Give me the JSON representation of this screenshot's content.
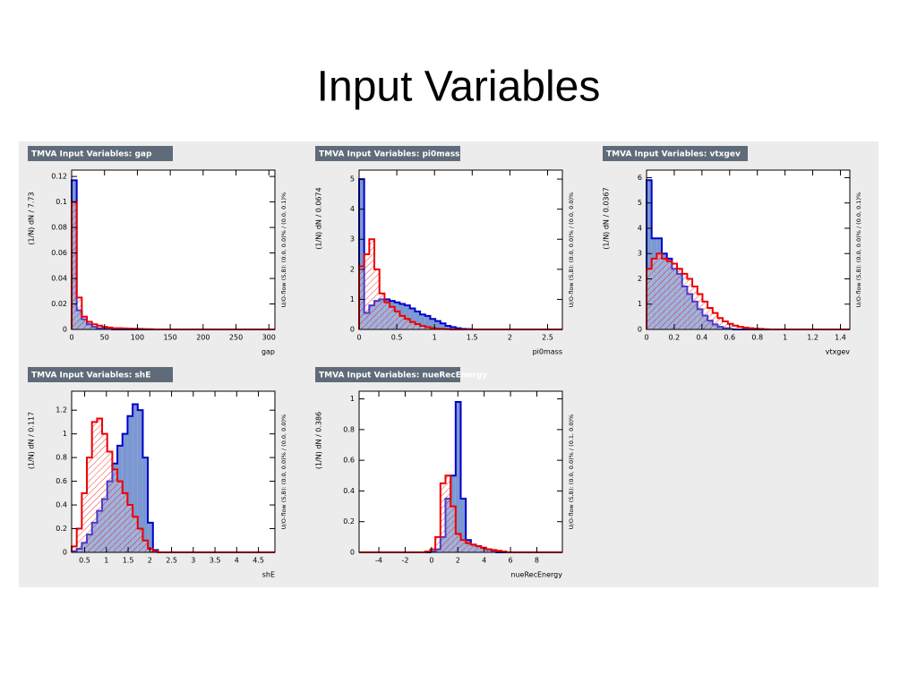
{
  "title": "Input Variables",
  "chart_data": [
    {
      "type": "histogram",
      "title": "TMVA Input Variables: gap",
      "x_label": "gap",
      "y_label": "(1/N) dN / 7.73",
      "side_label": "U/O-flow (S,B): (0.0, 0.0)% / (0.0, 0.1)%",
      "bins": [
        0,
        7.73,
        15.46,
        23.19,
        30.92,
        38.65,
        46.38,
        54.11,
        61.84,
        69.57,
        77.3,
        85.03,
        92.76,
        100.49,
        108.22,
        115.95,
        123.68,
        131.41,
        139.14,
        146.87,
        154.6,
        162.33,
        170.06,
        177.79,
        185.52,
        193.25,
        200.98,
        208.71,
        216.44,
        224.17,
        231.9,
        239.63,
        247.36,
        255.09,
        262.82,
        270.55,
        278.28,
        286.01,
        293.74,
        301.47,
        309.2
      ],
      "series": [
        {
          "color": "#0000cc",
          "fill": "#7b98d2",
          "values": [
            0.117,
            0.015,
            0.008,
            0.004,
            0.002,
            0.001,
            0.001,
            0.0005,
            0,
            0,
            0,
            0,
            0,
            0,
            0,
            0,
            0,
            0,
            0,
            0,
            0,
            0,
            0,
            0,
            0,
            0,
            0,
            0,
            0,
            0,
            0,
            0,
            0,
            0,
            0,
            0,
            0,
            0,
            0,
            0
          ]
        },
        {
          "color": "#ee0000",
          "fill": "hatch",
          "values": [
            0.1,
            0.025,
            0.01,
            0.006,
            0.004,
            0.003,
            0.002,
            0.0015,
            0.001,
            0.001,
            0.0008,
            0.0006,
            0.0005,
            0.0004,
            0.0003,
            0.0002,
            0,
            0,
            0,
            0,
            0,
            0,
            0,
            0,
            0,
            0,
            0,
            0,
            0,
            0,
            0,
            0,
            0,
            0,
            0,
            0,
            0,
            0,
            0,
            0
          ]
        }
      ],
      "xlim": [
        0,
        309.2
      ],
      "xticks": [
        0,
        50,
        100,
        150,
        200,
        250,
        300
      ],
      "ylim": [
        0,
        0.125
      ],
      "yticks": [
        0,
        0.02,
        0.04,
        0.06,
        0.08,
        0.1,
        0.12
      ]
    },
    {
      "type": "histogram",
      "title": "TMVA Input Variables: pi0mass",
      "x_label": "pi0mass",
      "y_label": "(1/N) dN / 0.0674",
      "side_label": "U/O-flow (S,B): (0.0, 0.0)% / (0.0, 0.0)%",
      "bins": [
        0,
        0.0674,
        0.1348,
        0.2022,
        0.2696,
        0.337,
        0.4044,
        0.4718,
        0.5392,
        0.6066,
        0.674,
        0.7414,
        0.8088,
        0.8762,
        0.9436,
        1.011,
        1.0784,
        1.1458,
        1.2132,
        1.2806,
        1.348,
        1.4154,
        1.4828,
        1.5502,
        1.6176,
        1.685,
        1.7524,
        1.8198,
        1.8872,
        1.9546,
        2.022,
        2.0894,
        2.1568,
        2.2242,
        2.2916,
        2.359,
        2.4264,
        2.4938,
        2.5612,
        2.6286,
        2.696
      ],
      "series": [
        {
          "color": "#0000cc",
          "fill": "#7b98d2",
          "values": [
            5.0,
            0.55,
            0.8,
            0.95,
            1.0,
            1.0,
            0.95,
            0.9,
            0.85,
            0.8,
            0.7,
            0.6,
            0.5,
            0.45,
            0.35,
            0.28,
            0.2,
            0.12,
            0.08,
            0.04,
            0.02,
            0.01,
            0,
            0,
            0,
            0,
            0,
            0,
            0,
            0,
            0,
            0,
            0,
            0,
            0,
            0,
            0,
            0,
            0,
            0
          ]
        },
        {
          "color": "#ee0000",
          "fill": "hatch",
          "values": [
            2.1,
            2.5,
            3.0,
            2.0,
            1.2,
            0.9,
            0.75,
            0.6,
            0.45,
            0.35,
            0.25,
            0.18,
            0.12,
            0.08,
            0.05,
            0.03,
            0.02,
            0.01,
            0,
            0,
            0,
            0,
            0,
            0,
            0,
            0,
            0,
            0,
            0,
            0,
            0,
            0,
            0,
            0,
            0,
            0,
            0,
            0,
            0,
            0
          ]
        }
      ],
      "xlim": [
        0,
        2.696
      ],
      "xticks": [
        0,
        0.5,
        1,
        1.5,
        2,
        2.5
      ],
      "ylim": [
        0,
        5.3
      ],
      "yticks": [
        0,
        1,
        2,
        3,
        4,
        5
      ]
    },
    {
      "type": "histogram",
      "title": "TMVA Input Variables: vtxgev",
      "x_label": "vtxgev",
      "y_label": "(1/N) dN / 0.0367",
      "side_label": "U/O-flow (S,B): (0.0, 0.0)% / (0.0, 0.1)%",
      "bins": [
        0,
        0.0367,
        0.0734,
        0.1101,
        0.1468,
        0.1835,
        0.2202,
        0.2569,
        0.2936,
        0.3303,
        0.367,
        0.4037,
        0.4404,
        0.4771,
        0.5138,
        0.5505,
        0.5872,
        0.6239,
        0.6606,
        0.6973,
        0.734,
        0.7707,
        0.8074,
        0.8441,
        0.8808,
        0.9175,
        0.9542,
        0.9909,
        1.0276,
        1.0643,
        1.101,
        1.1377,
        1.1744,
        1.2111,
        1.2478,
        1.2845,
        1.3212,
        1.3579,
        1.3946,
        1.4313,
        1.468
      ],
      "series": [
        {
          "color": "#0000cc",
          "fill": "#7b98d2",
          "values": [
            5.9,
            3.6,
            3.6,
            3.0,
            2.8,
            2.4,
            2.2,
            1.7,
            1.4,
            1.1,
            0.8,
            0.55,
            0.35,
            0.2,
            0.1,
            0.05,
            0.02,
            0,
            0,
            0,
            0,
            0,
            0,
            0,
            0,
            0,
            0,
            0,
            0,
            0,
            0,
            0,
            0,
            0,
            0,
            0,
            0,
            0,
            0,
            0
          ]
        },
        {
          "color": "#ee0000",
          "fill": "hatch",
          "values": [
            2.4,
            2.8,
            3.0,
            2.8,
            2.7,
            2.6,
            2.4,
            2.2,
            2.0,
            1.7,
            1.4,
            1.1,
            0.85,
            0.65,
            0.45,
            0.32,
            0.22,
            0.15,
            0.1,
            0.07,
            0.05,
            0.03,
            0.02,
            0.01,
            0,
            0,
            0,
            0,
            0,
            0,
            0,
            0,
            0,
            0,
            0,
            0,
            0,
            0,
            0,
            0
          ]
        }
      ],
      "xlim": [
        0,
        1.468
      ],
      "xticks": [
        0,
        0.2,
        0.4,
        0.6,
        0.8,
        1,
        1.2,
        1.4
      ],
      "ylim": [
        0,
        6.3
      ],
      "yticks": [
        0,
        1,
        2,
        3,
        4,
        5,
        6
      ]
    },
    {
      "type": "histogram",
      "title": "TMVA Input Variables: shE",
      "x_label": "shE",
      "y_label": "(1/N) dN / 0.117",
      "side_label": "U/O-flow (S,B): (0.0, 0.0)% / (0.0, 0.0)%",
      "bins": [
        0.2,
        0.317,
        0.434,
        0.551,
        0.668,
        0.785,
        0.902,
        1.019,
        1.136,
        1.253,
        1.37,
        1.487,
        1.604,
        1.721,
        1.838,
        1.955,
        2.072,
        2.189,
        2.306,
        2.423,
        2.54,
        2.657,
        2.774,
        2.891,
        3.008,
        3.125,
        3.242,
        3.359,
        3.476,
        3.593,
        3.71,
        3.827,
        3.944,
        4.061,
        4.178,
        4.295,
        4.412,
        4.529,
        4.646,
        4.763,
        4.88
      ],
      "series": [
        {
          "color": "#0000cc",
          "fill": "#7b98d2",
          "values": [
            0.01,
            0.03,
            0.08,
            0.15,
            0.25,
            0.35,
            0.45,
            0.6,
            0.75,
            0.9,
            1.0,
            1.15,
            1.25,
            1.2,
            0.8,
            0.25,
            0.02,
            0,
            0,
            0,
            0,
            0,
            0,
            0,
            0,
            0,
            0,
            0,
            0,
            0,
            0,
            0,
            0,
            0,
            0,
            0,
            0,
            0,
            0,
            0
          ]
        },
        {
          "color": "#ee0000",
          "fill": "hatch",
          "values": [
            0.05,
            0.2,
            0.5,
            0.8,
            1.1,
            1.13,
            1.0,
            0.85,
            0.7,
            0.6,
            0.5,
            0.4,
            0.3,
            0.2,
            0.1,
            0.03,
            0.01,
            0,
            0,
            0,
            0,
            0,
            0,
            0,
            0,
            0,
            0,
            0,
            0,
            0,
            0,
            0,
            0,
            0,
            0,
            0,
            0,
            0,
            0,
            0
          ]
        }
      ],
      "xlim": [
        0.2,
        4.88
      ],
      "xticks": [
        0.5,
        1,
        1.5,
        2,
        2.5,
        3,
        3.5,
        4,
        4.5
      ],
      "ylim": [
        0,
        1.36
      ],
      "yticks": [
        0,
        0.2,
        0.4,
        0.6,
        0.8,
        1,
        1.2
      ]
    },
    {
      "type": "histogram",
      "title": "TMVA Input Variables: nueRecEnergy",
      "x_label": "nueRecEnergy",
      "y_label": "(1/N) dN / 0.386",
      "side_label": "U/O-flow (S,B): (0.0, 0.0)% / (0.1, 0.0)%",
      "bins": [
        -5.5,
        -5.114,
        -4.728,
        -4.342,
        -3.956,
        -3.57,
        -3.184,
        -2.798,
        -2.412,
        -2.026,
        -1.64,
        -1.254,
        -0.868,
        -0.482,
        -0.096,
        0.29,
        0.676,
        1.062,
        1.448,
        1.834,
        2.22,
        2.606,
        2.992,
        3.378,
        3.764,
        4.15,
        4.536,
        4.922,
        5.308,
        5.694,
        6.08,
        6.466,
        6.852,
        7.238,
        7.624,
        8.01,
        8.396,
        8.782,
        9.168,
        9.554,
        9.94
      ],
      "series": [
        {
          "color": "#0000cc",
          "fill": "#7b98d2",
          "values": [
            0,
            0,
            0,
            0,
            0,
            0,
            0,
            0,
            0,
            0,
            0,
            0,
            0,
            0,
            0.005,
            0.02,
            0.1,
            0.35,
            0.5,
            0.98,
            0.35,
            0.08,
            0.05,
            0.04,
            0.03,
            0.02,
            0.01,
            0,
            0,
            0,
            0,
            0,
            0,
            0,
            0,
            0,
            0,
            0,
            0,
            0
          ]
        },
        {
          "color": "#ee0000",
          "fill": "hatch",
          "values": [
            0,
            0,
            0,
            0,
            0,
            0,
            0,
            0,
            0,
            0,
            0,
            0,
            0,
            0.005,
            0.02,
            0.1,
            0.45,
            0.5,
            0.3,
            0.12,
            0.08,
            0.06,
            0.05,
            0.04,
            0.03,
            0.02,
            0.015,
            0.01,
            0.005,
            0,
            0,
            0,
            0,
            0,
            0,
            0,
            0,
            0,
            0,
            0
          ]
        }
      ],
      "xlim": [
        -5.5,
        9.94
      ],
      "xticks": [
        -4,
        -2,
        0,
        2,
        4,
        6,
        8
      ],
      "ylim": [
        0,
        1.05
      ],
      "yticks": [
        0,
        0.2,
        0.4,
        0.6,
        0.8,
        1
      ]
    }
  ]
}
